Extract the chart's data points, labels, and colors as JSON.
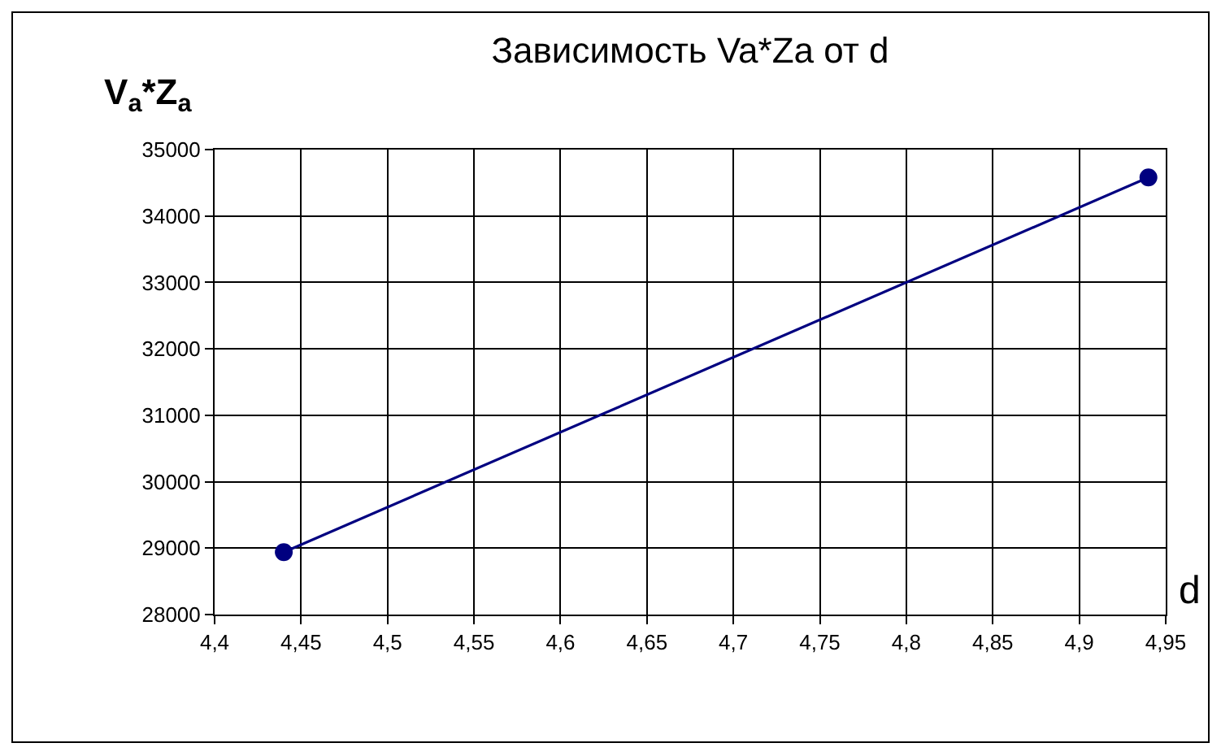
{
  "chart_data": {
    "type": "line",
    "title": "Зависимость Va*Za от d",
    "xlabel": "d",
    "ylabel": "V$_{a}$*Z$_{a}$",
    "x": [
      4.44,
      4.94
    ],
    "series": [
      {
        "color": "#000080",
        "values": [
          28940,
          34580
        ]
      }
    ],
    "xlim": [
      4.4,
      4.95
    ],
    "xticks": [
      {
        "value": 4.4,
        "label": "4,4"
      },
      {
        "value": 4.45,
        "label": "4,45"
      },
      {
        "value": 4.5,
        "label": "4,5"
      },
      {
        "value": 4.55,
        "label": "4,55"
      },
      {
        "value": 4.6,
        "label": "4,6"
      },
      {
        "value": 4.65,
        "label": "4,65"
      },
      {
        "value": 4.7,
        "label": "4,7"
      },
      {
        "value": 4.75,
        "label": "4,75"
      },
      {
        "value": 4.8,
        "label": "4,8"
      },
      {
        "value": 4.85,
        "label": "4,85"
      },
      {
        "value": 4.9,
        "label": "4,9"
      },
      {
        "value": 4.95,
        "label": "4,95"
      }
    ],
    "ylim": [
      28000,
      35000
    ],
    "yticks": [
      28000,
      29000,
      30000,
      31000,
      32000,
      33000,
      34000,
      35000
    ],
    "grid": true,
    "marker": "circle",
    "line_style": "solid"
  }
}
